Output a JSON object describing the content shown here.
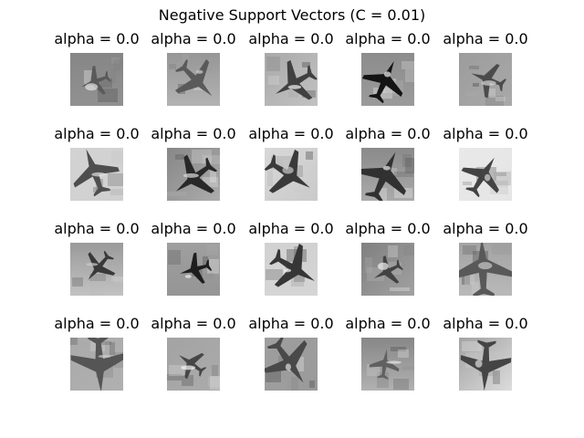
{
  "chart_data": {
    "type": "image-grid",
    "title": "Negative Support Vectors (C = 0.01)",
    "rows": 4,
    "cols": 5,
    "panels": [
      {
        "title": "alpha = 0.0",
        "image": "tiny-airplane-on-white-sky"
      },
      {
        "title": "alpha = 0.0",
        "image": "jet-on-ground-dark"
      },
      {
        "title": "alpha = 0.0",
        "image": "fighter-jet-front-view"
      },
      {
        "title": "alpha = 0.0",
        "image": "aircraft-with-propellers"
      },
      {
        "title": "alpha = 0.0",
        "image": "airliner-nose-closeup"
      },
      {
        "title": "alpha = 0.0",
        "image": "boeing-747-poster"
      },
      {
        "title": "alpha = 0.0",
        "image": "seaplane-over-water"
      },
      {
        "title": "alpha = 0.0",
        "image": "airliner-taking-off"
      },
      {
        "title": "alpha = 0.0",
        "image": "aircraft-top-view"
      },
      {
        "title": "alpha = 0.0",
        "image": "propeller-plane-light"
      },
      {
        "title": "alpha = 0.0",
        "image": "jet-silhouette-sky"
      },
      {
        "title": "alpha = 0.0",
        "image": "airliner-on-runway"
      },
      {
        "title": "alpha = 0.0",
        "image": "stealth-bomber-wing"
      },
      {
        "title": "alpha = 0.0",
        "image": "fighter-jet-on-tarmac"
      },
      {
        "title": "alpha = 0.0",
        "image": "aircraft-dark-background"
      },
      {
        "title": "alpha = 0.0",
        "image": "airliner-banking"
      },
      {
        "title": "alpha = 0.0",
        "image": "jet-closeup-angled"
      },
      {
        "title": "alpha = 0.0",
        "image": "propeller-plane-textured"
      },
      {
        "title": "alpha = 0.0",
        "image": "plane-over-field"
      },
      {
        "title": "alpha = 0.0",
        "image": "stealth-fighter-light-sky"
      }
    ]
  }
}
